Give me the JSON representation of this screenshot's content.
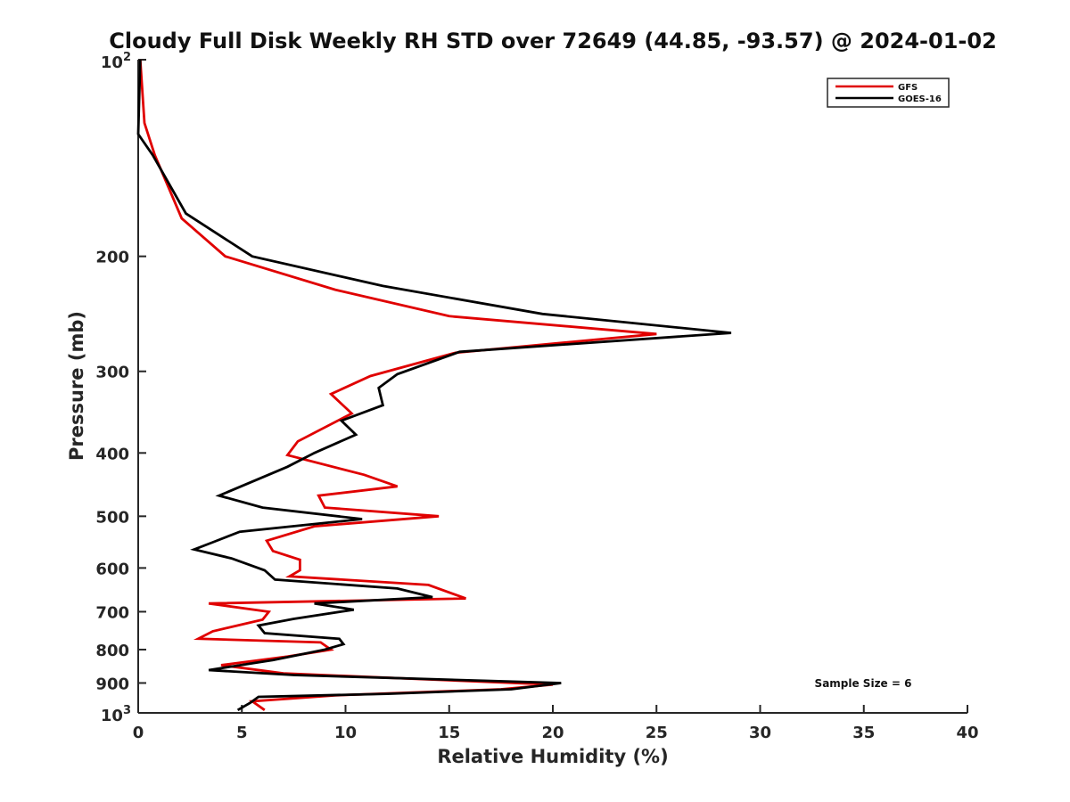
{
  "chart_data": {
    "type": "line",
    "title": "Cloudy Full Disk Weekly RH STD over 72649 (44.85, -93.57) @ 2024-01-02",
    "xlabel": "Relative Humidity (%)",
    "ylabel": "Pressure (mb)",
    "xlim": [
      0,
      40
    ],
    "ylim": [
      100,
      1000
    ],
    "y_scale": "log",
    "y_reversed": true,
    "x_ticks": [
      "0",
      "5",
      "10",
      "15",
      "20",
      "25",
      "30",
      "35",
      "40"
    ],
    "y_ticks": [
      {
        "value": 100,
        "base": "10",
        "exp": "2"
      },
      {
        "value": 200,
        "label": "200"
      },
      {
        "value": 300,
        "label": "300"
      },
      {
        "value": 400,
        "label": "400"
      },
      {
        "value": 500,
        "label": "500"
      },
      {
        "value": 600,
        "label": "600"
      },
      {
        "value": 700,
        "label": "700"
      },
      {
        "value": 800,
        "label": "800"
      },
      {
        "value": 900,
        "label": "900"
      },
      {
        "value": 1000,
        "base": "10",
        "exp": "3"
      }
    ],
    "legend_position": "top-right",
    "grid": false,
    "annotation": "Sample Size = 6",
    "series": [
      {
        "name": "GFS",
        "color": "#e00000",
        "points": [
          [
            0.1,
            100
          ],
          [
            0.3,
            125
          ],
          [
            0.8,
            140
          ],
          [
            2.1,
            175
          ],
          [
            4.2,
            200
          ],
          [
            9.5,
            225
          ],
          [
            15.0,
            247
          ],
          [
            25.0,
            263
          ],
          [
            15.3,
            281
          ],
          [
            11.2,
            305
          ],
          [
            9.3,
            325
          ],
          [
            10.3,
            348
          ],
          [
            7.7,
            384
          ],
          [
            7.2,
            403
          ],
          [
            10.9,
            432
          ],
          [
            12.5,
            450
          ],
          [
            8.7,
            465
          ],
          [
            9.0,
            485
          ],
          [
            14.5,
            500
          ],
          [
            8.5,
            518
          ],
          [
            6.2,
            545
          ],
          [
            6.5,
            565
          ],
          [
            7.8,
            583
          ],
          [
            7.8,
            605
          ],
          [
            7.3,
            618
          ],
          [
            14.0,
            637
          ],
          [
            15.8,
            668
          ],
          [
            3.4,
            680
          ],
          [
            6.3,
            700
          ],
          [
            6.0,
            720
          ],
          [
            3.6,
            750
          ],
          [
            2.9,
            770
          ],
          [
            8.8,
            780
          ],
          [
            9.3,
            800
          ],
          [
            7.2,
            820
          ],
          [
            4.0,
            845
          ],
          [
            7.0,
            870
          ],
          [
            20.0,
            905
          ],
          [
            17.5,
            920
          ],
          [
            9.5,
            940
          ],
          [
            5.5,
            960
          ],
          [
            6.1,
            990
          ]
        ]
      },
      {
        "name": "GOES-16",
        "color": "#000000",
        "points": [
          [
            0.1,
            100
          ],
          [
            0.0,
            130
          ],
          [
            0.7,
            140
          ],
          [
            2.3,
            172
          ],
          [
            5.5,
            200
          ],
          [
            11.8,
            222
          ],
          [
            19.5,
            245
          ],
          [
            28.6,
            262
          ],
          [
            15.5,
            280
          ],
          [
            12.5,
            303
          ],
          [
            11.6,
            318
          ],
          [
            11.8,
            338
          ],
          [
            9.8,
            357
          ],
          [
            10.5,
            375
          ],
          [
            8.5,
            400
          ],
          [
            7.2,
            420
          ],
          [
            3.9,
            465
          ],
          [
            6.0,
            485
          ],
          [
            10.8,
            505
          ],
          [
            4.9,
            528
          ],
          [
            3.6,
            548
          ],
          [
            2.7,
            562
          ],
          [
            4.5,
            580
          ],
          [
            6.1,
            605
          ],
          [
            6.6,
            625
          ],
          [
            12.5,
            645
          ],
          [
            14.2,
            665
          ],
          [
            8.5,
            680
          ],
          [
            10.4,
            695
          ],
          [
            7.5,
            718
          ],
          [
            5.8,
            735
          ],
          [
            6.1,
            755
          ],
          [
            9.7,
            770
          ],
          [
            9.9,
            785
          ],
          [
            9.0,
            800
          ],
          [
            6.5,
            830
          ],
          [
            3.4,
            860
          ],
          [
            7.5,
            875
          ],
          [
            20.4,
            900
          ],
          [
            18.0,
            920
          ],
          [
            12.0,
            935
          ],
          [
            5.8,
            945
          ],
          [
            5.4,
            965
          ],
          [
            4.8,
            990
          ]
        ]
      }
    ]
  }
}
